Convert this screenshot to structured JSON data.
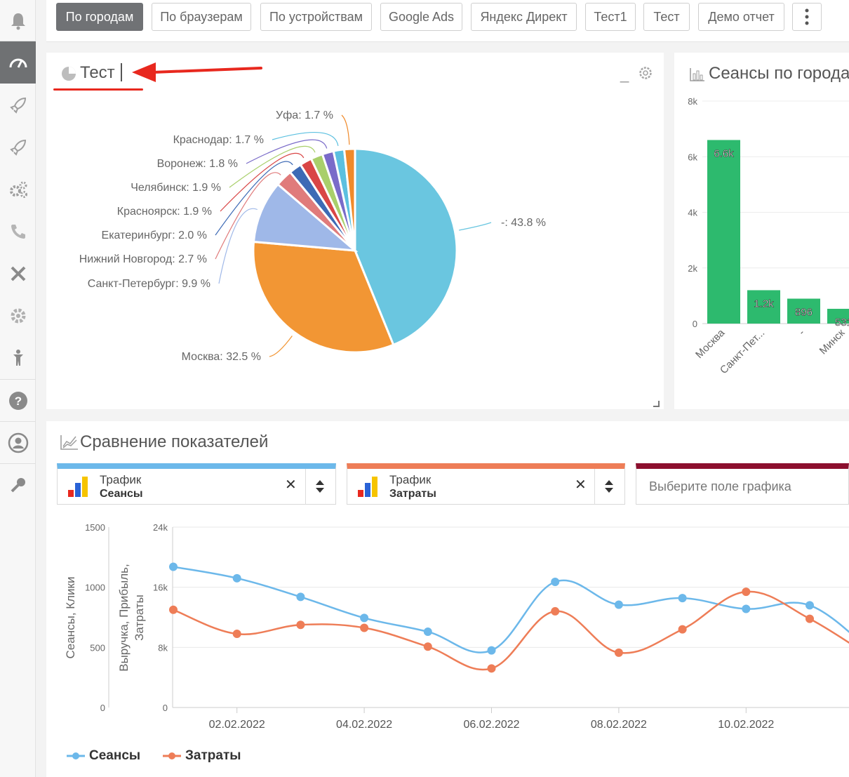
{
  "tabs": [
    "По городам",
    "По браузерам",
    "По устройствам",
    "Google Ads",
    "Яндекс Директ",
    "Тест1",
    "Тест",
    "Демо отчет"
  ],
  "pie_panel": {
    "title": "Тест",
    "minimize": "_",
    "slices": [
      {
        "label": "-: 43.8 %",
        "value": 43.8,
        "color": "#6ac6e0"
      },
      {
        "label": "Москва: 32.5 %",
        "value": 32.5,
        "color": "#f29634"
      },
      {
        "label": "Санкт-Петербург: 9.9 %",
        "value": 9.9,
        "color": "#9fb8e8"
      },
      {
        "label": "Нижний Новгород: 2.7 %",
        "value": 2.7,
        "color": "#e07b7b"
      },
      {
        "label": "Екатеринбург: 2.0 %",
        "value": 2.0,
        "color": "#3d6ab5"
      },
      {
        "label": "Красноярск: 1.9 %",
        "value": 1.9,
        "color": "#d94646"
      },
      {
        "label": "Челябинск: 1.9 %",
        "value": 1.9,
        "color": "#a9cf6b"
      },
      {
        "label": "Воронеж: 1.8 %",
        "value": 1.8,
        "color": "#7a6bc9"
      },
      {
        "label": "Краснодар: 1.7 %",
        "value": 1.7,
        "color": "#5cc0e0"
      },
      {
        "label": "Уфа: 1.7 %",
        "value": 1.7,
        "color": "#f08a2a"
      }
    ]
  },
  "bar_panel": {
    "title": "Сеансы по города",
    "y_ticks": [
      "8k",
      "6k",
      "4k",
      "2k",
      "0"
    ],
    "y_max": 8000,
    "bars": [
      {
        "category": "Москва",
        "value": 6600,
        "label": "6.6k"
      },
      {
        "category": "Санкт-Пет...",
        "value": 1200,
        "label": "1.2k"
      },
      {
        "category": "-",
        "value": 896,
        "label": "896"
      },
      {
        "category": "Минск",
        "value": 531,
        "label": "531"
      },
      {
        "category": "К",
        "value": 0,
        "label": ""
      }
    ]
  },
  "compare": {
    "title": "Сравнение показателей",
    "selectors": [
      {
        "line1": "Трафик",
        "line2": "Сеансы",
        "color": "#6cb8ea"
      },
      {
        "line1": "Трафик",
        "line2": "Затраты",
        "color": "#ee7d57"
      }
    ],
    "placeholder": "Выберите поле графика",
    "placeholder_color": "#8c0f2e",
    "left_axis_title": "Сеансы, Клики",
    "right_axis_title_1": "Выручка, Прибыль,",
    "right_axis_title_2": "Затраты",
    "left_ticks": [
      "1500",
      "1000",
      "500",
      "0"
    ],
    "right_ticks": [
      "24k",
      "16k",
      "8k",
      "0"
    ],
    "x_ticks": [
      "02.02.2022",
      "04.02.2022",
      "06.02.2022",
      "08.02.2022",
      "10.02.2022",
      "1"
    ],
    "chart_data": {
      "type": "line",
      "x": [
        "01.02.2022",
        "02.02.2022",
        "03.02.2022",
        "04.02.2022",
        "05.02.2022",
        "06.02.2022",
        "07.02.2022",
        "08.02.2022",
        "09.02.2022",
        "10.02.2022",
        "11.02.2022",
        "12.02.2022"
      ],
      "left_ylim": [
        0,
        1500
      ],
      "right_ylim": [
        0,
        24000
      ],
      "series": [
        {
          "name": "Сеансы",
          "axis": "left",
          "color": "#6cb8ea",
          "values": [
            1170,
            1075,
            920,
            745,
            630,
            475,
            1045,
            855,
            910,
            820,
            850,
            450
          ]
        },
        {
          "name": "Затраты",
          "axis": "right",
          "color": "#ee7d57",
          "values": [
            13000,
            9800,
            11000,
            10600,
            8100,
            5200,
            12800,
            7300,
            10400,
            15400,
            11800,
            6500
          ]
        }
      ]
    }
  }
}
